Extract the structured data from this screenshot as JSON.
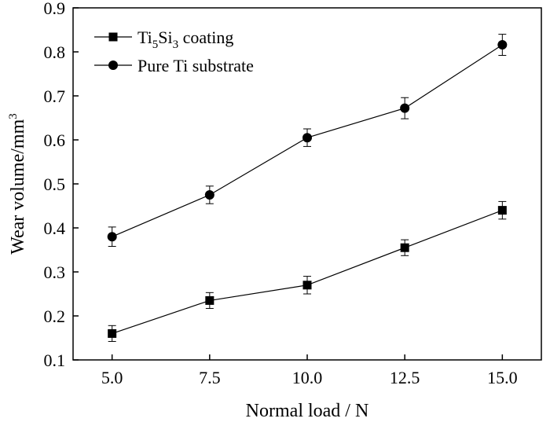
{
  "chart_data": {
    "type": "line",
    "xlabel": "Normal load / N",
    "ylabel_main": "Wear volume/mm",
    "ylabel_sup": "3",
    "xlim": [
      4.0,
      16.0
    ],
    "ylim": [
      0.1,
      0.9
    ],
    "x_ticks": [
      "5.0",
      "7.5",
      "10.0",
      "12.5",
      "15.0"
    ],
    "x_tick_values": [
      5.0,
      7.5,
      10.0,
      12.5,
      15.0
    ],
    "y_ticks": [
      "0.1",
      "0.2",
      "0.3",
      "0.4",
      "0.5",
      "0.6",
      "0.7",
      "0.8",
      "0.9"
    ],
    "y_tick_values": [
      0.1,
      0.2,
      0.3,
      0.4,
      0.5,
      0.6,
      0.7,
      0.8,
      0.9
    ],
    "grid": false,
    "legend_position": "top-left",
    "series": [
      {
        "legend_parts": [
          "Ti",
          "5",
          "Si",
          "3",
          " coating"
        ],
        "marker": "square",
        "color": "#000000",
        "x": [
          5.0,
          7.5,
          10.0,
          12.5,
          15.0
        ],
        "y": [
          0.16,
          0.235,
          0.27,
          0.355,
          0.44
        ],
        "err": [
          0.018,
          0.018,
          0.02,
          0.018,
          0.02
        ]
      },
      {
        "legend_parts": [
          "Pure Ti substrate"
        ],
        "marker": "circle",
        "color": "#000000",
        "x": [
          5.0,
          7.5,
          10.0,
          12.5,
          15.0
        ],
        "y": [
          0.38,
          0.475,
          0.605,
          0.672,
          0.816
        ],
        "err": [
          0.022,
          0.02,
          0.02,
          0.024,
          0.024
        ]
      }
    ]
  }
}
